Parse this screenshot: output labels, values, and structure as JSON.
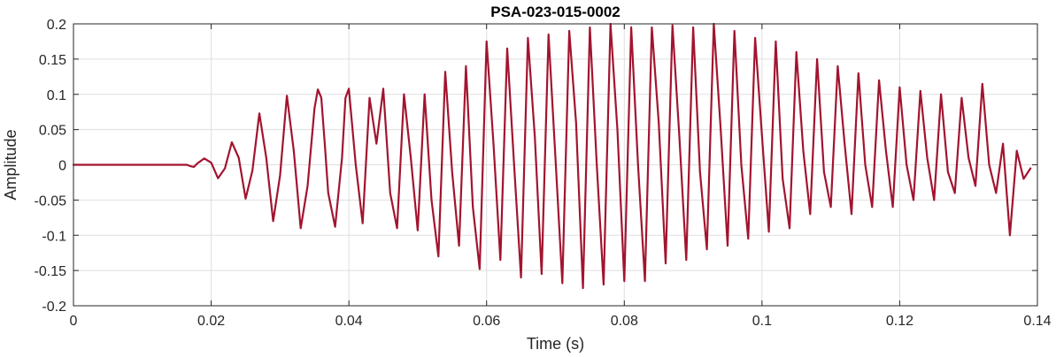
{
  "chart_data": {
    "type": "line",
    "title": "PSA-023-015-0002",
    "xlabel": "Time (s)",
    "ylabel": "Amplitude",
    "xlim": [
      0,
      0.14
    ],
    "ylim": [
      -0.2,
      0.2
    ],
    "xticks": [
      0,
      0.02,
      0.04,
      0.06,
      0.08,
      0.1,
      0.12,
      0.14
    ],
    "xtick_labels": [
      "0",
      "0.02",
      "0.04",
      "0.06",
      "0.08",
      "0.1",
      "0.12",
      "0.14"
    ],
    "yticks": [
      0.2,
      0.15,
      0.1,
      0.05,
      0,
      -0.05,
      -0.1,
      -0.15,
      -0.2
    ],
    "ytick_labels": [
      "0.2",
      "0.15",
      "0.1",
      "0.05",
      "0",
      "-0.05",
      "-0.1",
      "-0.15",
      "-0.2"
    ],
    "grid": true,
    "line_color": "#A2142F",
    "series": [
      {
        "x": [
          0,
          0.0165,
          0.017,
          0.0175,
          0.018,
          0.019,
          0.02,
          0.021,
          0.022,
          0.023,
          0.024,
          0.025,
          0.026,
          0.027,
          0.028,
          0.029,
          0.03,
          0.031,
          0.032,
          0.033,
          0.034,
          0.035,
          0.0355,
          0.036,
          0.0365,
          0.037,
          0.038,
          0.039,
          0.0395,
          0.04,
          0.041,
          0.042,
          0.043,
          0.044,
          0.045,
          0.046,
          0.047,
          0.048,
          0.049,
          0.05,
          0.051,
          0.052,
          0.053,
          0.054,
          0.055,
          0.056,
          0.057,
          0.058,
          0.059,
          0.06,
          0.061,
          0.062,
          0.063,
          0.064,
          0.065,
          0.066,
          0.067,
          0.068,
          0.069,
          0.07,
          0.071,
          0.072,
          0.073,
          0.074,
          0.075,
          0.076,
          0.077,
          0.078,
          0.079,
          0.08,
          0.081,
          0.082,
          0.083,
          0.084,
          0.085,
          0.086,
          0.087,
          0.088,
          0.089,
          0.09,
          0.091,
          0.092,
          0.093,
          0.094,
          0.095,
          0.096,
          0.097,
          0.098,
          0.099,
          0.1,
          0.101,
          0.102,
          0.103,
          0.104,
          0.105,
          0.106,
          0.107,
          0.108,
          0.109,
          0.11,
          0.111,
          0.112,
          0.113,
          0.114,
          0.115,
          0.116,
          0.117,
          0.118,
          0.119,
          0.12,
          0.121,
          0.122,
          0.123,
          0.124,
          0.125,
          0.126,
          0.127,
          0.128,
          0.129,
          0.13,
          0.131,
          0.132,
          0.133,
          0.134,
          0.135,
          0.136,
          0.137,
          0.138,
          0.139
        ],
        "y": [
          0,
          0,
          -0.002,
          -0.003,
          0.002,
          0.009,
          0.003,
          -0.019,
          -0.005,
          0.032,
          0.01,
          -0.048,
          -0.008,
          0.073,
          0.01,
          -0.08,
          -0.015,
          0.098,
          0.02,
          -0.09,
          -0.03,
          0.08,
          0.107,
          0.095,
          0.03,
          -0.04,
          -0.088,
          0.01,
          0.095,
          0.108,
          0.0,
          -0.083,
          0.095,
          0.03,
          0.108,
          -0.04,
          -0.09,
          0.1,
          0.01,
          -0.093,
          0.1,
          -0.05,
          -0.13,
          0.132,
          -0.01,
          -0.115,
          0.14,
          -0.06,
          -0.148,
          0.175,
          0.03,
          -0.135,
          0.165,
          0.0,
          -0.16,
          0.18,
          0.04,
          -0.155,
          0.185,
          0.01,
          -0.168,
          0.19,
          0.06,
          -0.175,
          0.195,
          0.0,
          -0.17,
          0.2,
          0.05,
          -0.165,
          0.195,
          0.0,
          -0.165,
          0.195,
          0.06,
          -0.14,
          0.198,
          0.04,
          -0.135,
          0.195,
          -0.01,
          -0.12,
          0.2,
          0.05,
          -0.115,
          0.19,
          0.0,
          -0.105,
          0.18,
          0.04,
          -0.095,
          0.175,
          -0.02,
          -0.09,
          0.16,
          0.02,
          -0.07,
          0.15,
          -0.01,
          -0.06,
          0.14,
          0.03,
          -0.07,
          0.13,
          0.0,
          -0.06,
          0.12,
          0.02,
          -0.06,
          0.11,
          0.0,
          -0.05,
          0.105,
          0.01,
          -0.05,
          0.1,
          -0.01,
          -0.04,
          0.095,
          0.01,
          -0.03,
          0.115,
          0.0,
          -0.04,
          0.03,
          -0.1,
          0.02,
          -0.02,
          -0.005
        ]
      }
    ]
  }
}
